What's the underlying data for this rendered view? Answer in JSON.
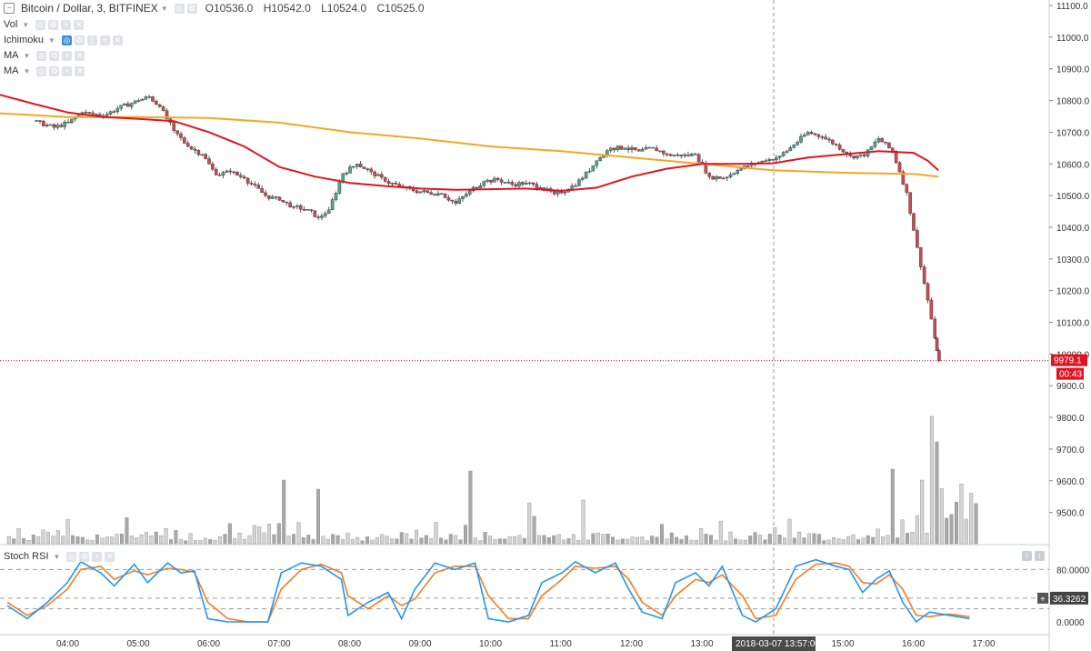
{
  "header": {
    "symbol": "Bitcoin / Dollar, 3, BITFINEX",
    "open": "O10536.0",
    "high": "H10542.0",
    "low": "L10524.0",
    "close": "C10525.0"
  },
  "indicators": [
    "Vol",
    "Ichimoku",
    "MA",
    "MA"
  ],
  "oscillator": {
    "label": "Stoch RSI",
    "value": "36.3262"
  },
  "last_price": {
    "value": "9979.1",
    "countdown": "00:43"
  },
  "crosshair_label": "2018-03-07 13:57:00",
  "colors": {
    "up": "#53a18e",
    "down": "#c94a52",
    "ma_fast": "#e0141e",
    "ma_slow": "#f5a623",
    "k": "#2196f3",
    "d": "#f57c20"
  },
  "chart_data": {
    "type": "candlestick",
    "price_axis": {
      "ylim": [
        9450,
        11100
      ],
      "ticks": [
        "11100.0",
        "11000.0",
        "10900.0",
        "10800.0",
        "10700.0",
        "10600.0",
        "10500.0",
        "10400.0",
        "10300.0",
        "10200.0",
        "10100.0",
        "10000.0",
        "9900.0",
        "9800.0",
        "9700.0",
        "9600.0",
        "9500.0"
      ]
    },
    "time_axis": {
      "ticks": [
        "04:00",
        "05:00",
        "06:00",
        "07:00",
        "08:00",
        "09:00",
        "10:00",
        "11:00",
        "12:00",
        "13:00",
        "15:00",
        "16:00",
        "17:00"
      ]
    },
    "close_series": [
      [
        3.5,
        10735
      ],
      [
        3.8,
        10715
      ],
      [
        4.0,
        10730
      ],
      [
        4.2,
        10762
      ],
      [
        4.5,
        10752
      ],
      [
        4.7,
        10775
      ],
      [
        5.0,
        10800
      ],
      [
        5.15,
        10812
      ],
      [
        5.3,
        10780
      ],
      [
        5.5,
        10705
      ],
      [
        5.7,
        10655
      ],
      [
        5.9,
        10630
      ],
      [
        6.1,
        10565
      ],
      [
        6.3,
        10575
      ],
      [
        6.5,
        10555
      ],
      [
        6.8,
        10500
      ],
      [
        7.0,
        10485
      ],
      [
        7.2,
        10465
      ],
      [
        7.4,
        10455
      ],
      [
        7.55,
        10430
      ],
      [
        7.7,
        10455
      ],
      [
        7.9,
        10570
      ],
      [
        8.1,
        10600
      ],
      [
        8.3,
        10575
      ],
      [
        8.5,
        10545
      ],
      [
        8.7,
        10530
      ],
      [
        8.9,
        10515
      ],
      [
        9.1,
        10510
      ],
      [
        9.3,
        10505
      ],
      [
        9.5,
        10475
      ],
      [
        9.7,
        10515
      ],
      [
        9.9,
        10545
      ],
      [
        10.1,
        10550
      ],
      [
        10.3,
        10535
      ],
      [
        10.5,
        10540
      ],
      [
        10.7,
        10525
      ],
      [
        10.9,
        10505
      ],
      [
        11.1,
        10520
      ],
      [
        11.3,
        10555
      ],
      [
        11.5,
        10610
      ],
      [
        11.7,
        10650
      ],
      [
        11.9,
        10650
      ],
      [
        12.1,
        10640
      ],
      [
        12.3,
        10650
      ],
      [
        12.5,
        10630
      ],
      [
        12.7,
        10625
      ],
      [
        12.9,
        10630
      ],
      [
        13.1,
        10560
      ],
      [
        13.3,
        10555
      ],
      [
        13.5,
        10580
      ],
      [
        13.7,
        10600
      ],
      [
        13.9,
        10610
      ],
      [
        14.1,
        10625
      ],
      [
        14.3,
        10660
      ],
      [
        14.5,
        10700
      ],
      [
        14.7,
        10685
      ],
      [
        14.9,
        10660
      ],
      [
        15.1,
        10625
      ],
      [
        15.3,
        10625
      ],
      [
        15.5,
        10680
      ],
      [
        15.7,
        10640
      ],
      [
        15.8,
        10575
      ],
      [
        15.9,
        10510
      ],
      [
        16.0,
        10390
      ],
      [
        16.1,
        10275
      ],
      [
        16.2,
        10170
      ],
      [
        16.3,
        10050
      ],
      [
        16.36,
        9979.1
      ]
    ],
    "ma_fast": [
      [
        3.0,
        10820
      ],
      [
        3.5,
        10790
      ],
      [
        4.0,
        10762
      ],
      [
        4.5,
        10748
      ],
      [
        5.0,
        10742
      ],
      [
        5.5,
        10735
      ],
      [
        6.0,
        10700
      ],
      [
        6.5,
        10655
      ],
      [
        7.0,
        10590
      ],
      [
        7.5,
        10560
      ],
      [
        8.0,
        10540
      ],
      [
        8.5,
        10530
      ],
      [
        9.0,
        10522
      ],
      [
        9.5,
        10518
      ],
      [
        10.0,
        10520
      ],
      [
        10.5,
        10522
      ],
      [
        11.0,
        10515
      ],
      [
        11.5,
        10525
      ],
      [
        12.0,
        10560
      ],
      [
        12.5,
        10585
      ],
      [
        13.0,
        10600
      ],
      [
        13.5,
        10600
      ],
      [
        14.0,
        10602
      ],
      [
        14.5,
        10620
      ],
      [
        15.0,
        10630
      ],
      [
        15.5,
        10640
      ],
      [
        16.0,
        10635
      ],
      [
        16.2,
        10610
      ],
      [
        16.35,
        10580
      ]
    ],
    "ma_slow": [
      [
        3.0,
        10760
      ],
      [
        4.0,
        10748
      ],
      [
        5.0,
        10748
      ],
      [
        6.0,
        10745
      ],
      [
        7.0,
        10730
      ],
      [
        8.0,
        10700
      ],
      [
        9.0,
        10680
      ],
      [
        10.0,
        10655
      ],
      [
        11.0,
        10640
      ],
      [
        12.0,
        10620
      ],
      [
        13.0,
        10600
      ],
      [
        14.0,
        10580
      ],
      [
        15.0,
        10572
      ],
      [
        16.0,
        10568
      ],
      [
        16.35,
        10560
      ]
    ],
    "volume_tallest_bars": [
      [
        4.0,
        27
      ],
      [
        7.0,
        70
      ],
      [
        7.5,
        60
      ],
      [
        9.7,
        80
      ],
      [
        10.5,
        45
      ],
      [
        11.3,
        48
      ],
      [
        15.7,
        82
      ],
      [
        16.2,
        140
      ],
      [
        16.3,
        112
      ],
      [
        16.1,
        70
      ]
    ],
    "stoch_rsi": {
      "levels": [
        80,
        20
      ],
      "ticks": [
        "80.0000",
        "0.0000"
      ],
      "k": [
        [
          3.0,
          25
        ],
        [
          3.3,
          5
        ],
        [
          3.6,
          30
        ],
        [
          3.9,
          60
        ],
        [
          4.1,
          92
        ],
        [
          4.4,
          75
        ],
        [
          4.6,
          55
        ],
        [
          4.9,
          88
        ],
        [
          5.1,
          60
        ],
        [
          5.4,
          90
        ],
        [
          5.6,
          75
        ],
        [
          5.8,
          78
        ],
        [
          6.0,
          5
        ],
        [
          6.3,
          0
        ],
        [
          6.6,
          0
        ],
        [
          6.9,
          0
        ],
        [
          7.1,
          75
        ],
        [
          7.4,
          90
        ],
        [
          7.7,
          85
        ],
        [
          8.0,
          65
        ],
        [
          8.1,
          10
        ],
        [
          8.4,
          30
        ],
        [
          8.7,
          45
        ],
        [
          8.9,
          5
        ],
        [
          9.1,
          50
        ],
        [
          9.4,
          90
        ],
        [
          9.7,
          80
        ],
        [
          10.0,
          90
        ],
        [
          10.2,
          5
        ],
        [
          10.5,
          0
        ],
        [
          10.8,
          10
        ],
        [
          11.0,
          60
        ],
        [
          11.3,
          75
        ],
        [
          11.5,
          92
        ],
        [
          11.8,
          75
        ],
        [
          12.1,
          90
        ],
        [
          12.3,
          50
        ],
        [
          12.5,
          15
        ],
        [
          12.8,
          5
        ],
        [
          13.0,
          60
        ],
        [
          13.3,
          75
        ],
        [
          13.5,
          55
        ],
        [
          13.7,
          85
        ],
        [
          14.0,
          10
        ],
        [
          14.2,
          0
        ],
        [
          14.5,
          20
        ],
        [
          14.8,
          85
        ],
        [
          15.1,
          95
        ],
        [
          15.4,
          85
        ],
        [
          15.6,
          80
        ],
        [
          15.8,
          45
        ],
        [
          16.0,
          65
        ],
        [
          16.2,
          78
        ],
        [
          16.4,
          30
        ],
        [
          16.6,
          0
        ],
        [
          16.8,
          15
        ],
        [
          17.1,
          10
        ],
        [
          17.4,
          5
        ]
      ],
      "d": [
        [
          3.0,
          30
        ],
        [
          3.3,
          10
        ],
        [
          3.6,
          25
        ],
        [
          3.9,
          50
        ],
        [
          4.1,
          80
        ],
        [
          4.4,
          85
        ],
        [
          4.6,
          65
        ],
        [
          4.9,
          78
        ],
        [
          5.1,
          72
        ],
        [
          5.4,
          82
        ],
        [
          5.6,
          80
        ],
        [
          5.8,
          76
        ],
        [
          6.0,
          30
        ],
        [
          6.3,
          5
        ],
        [
          6.6,
          0
        ],
        [
          6.9,
          0
        ],
        [
          7.1,
          50
        ],
        [
          7.4,
          80
        ],
        [
          7.7,
          88
        ],
        [
          8.0,
          75
        ],
        [
          8.1,
          40
        ],
        [
          8.4,
          20
        ],
        [
          8.7,
          40
        ],
        [
          8.9,
          25
        ],
        [
          9.1,
          35
        ],
        [
          9.4,
          75
        ],
        [
          9.7,
          85
        ],
        [
          10.0,
          85
        ],
        [
          10.2,
          40
        ],
        [
          10.5,
          5
        ],
        [
          10.8,
          5
        ],
        [
          11.0,
          40
        ],
        [
          11.3,
          65
        ],
        [
          11.5,
          85
        ],
        [
          11.8,
          82
        ],
        [
          12.1,
          85
        ],
        [
          12.3,
          65
        ],
        [
          12.5,
          30
        ],
        [
          12.8,
          10
        ],
        [
          13.0,
          40
        ],
        [
          13.3,
          65
        ],
        [
          13.5,
          60
        ],
        [
          13.7,
          72
        ],
        [
          14.0,
          40
        ],
        [
          14.2,
          5
        ],
        [
          14.5,
          10
        ],
        [
          14.8,
          65
        ],
        [
          15.1,
          88
        ],
        [
          15.4,
          90
        ],
        [
          15.6,
          85
        ],
        [
          15.8,
          60
        ],
        [
          16.0,
          58
        ],
        [
          16.2,
          72
        ],
        [
          16.4,
          50
        ],
        [
          16.6,
          10
        ],
        [
          16.8,
          8
        ],
        [
          17.1,
          12
        ],
        [
          17.4,
          8
        ]
      ]
    }
  }
}
